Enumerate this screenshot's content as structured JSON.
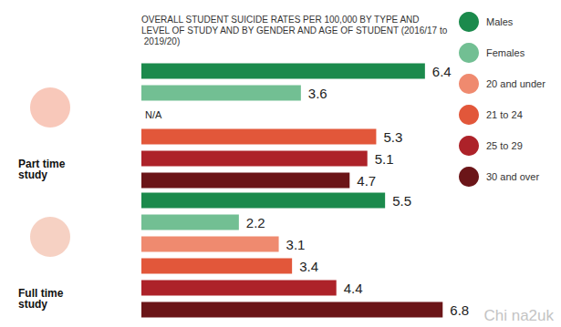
{
  "chart_data": {
    "type": "bar",
    "orientation": "horizontal",
    "title": "OVERALL STUDENT SUICIDE RATES PER 100,000 BY TYPE AND LEVEL OF STUDY AND BY GENDER AND AGE OF STUDENT (2016/17 to 2019/20)",
    "categories": [
      "Part time study",
      "Full time study"
    ],
    "series": [
      {
        "name": "Males",
        "color": "#1b8a4c",
        "values": [
          6.4,
          5.5
        ]
      },
      {
        "name": "Females",
        "color": "#72bf93",
        "values": [
          3.6,
          2.2
        ]
      },
      {
        "name": "20 and under",
        "color": "#ef8a6f",
        "values": [
          null,
          3.1
        ],
        "value_labels": [
          "N/A",
          "3.1"
        ]
      },
      {
        "name": "21 to 24",
        "color": "#e2573a",
        "values": [
          5.3,
          3.4
        ]
      },
      {
        "name": "25 to 29",
        "color": "#ad2229",
        "values": [
          5.1,
          4.4
        ]
      },
      {
        "name": "30 and over",
        "color": "#6b1518",
        "values": [
          4.7,
          6.8
        ]
      }
    ],
    "xlim": [
      0,
      7
    ],
    "xticks": [
      0,
      7
    ],
    "grid": false,
    "legend": "right",
    "data_labels": true,
    "tick_labels": false,
    "annotations": [
      "Chi na2uk"
    ]
  }
}
